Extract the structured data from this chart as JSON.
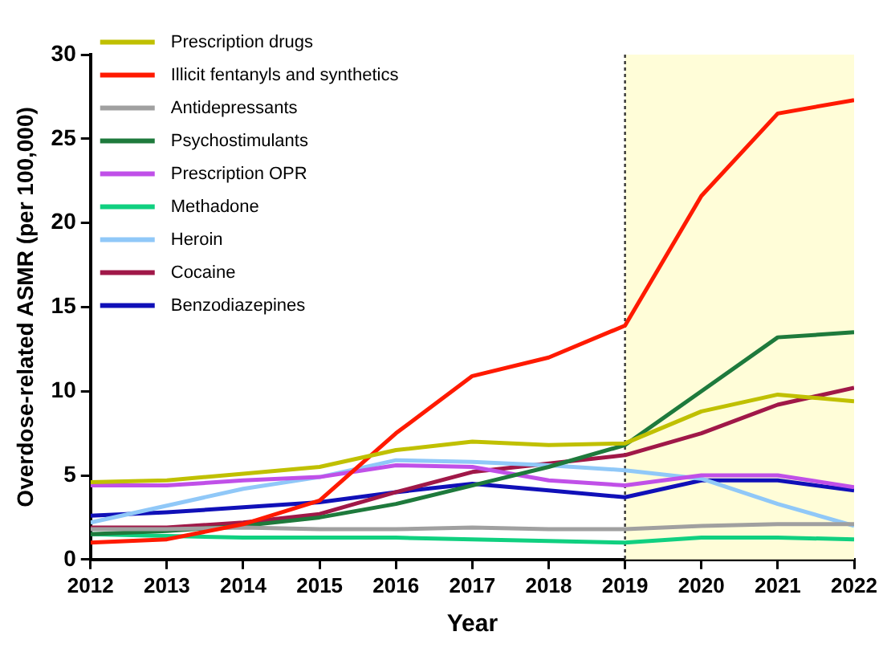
{
  "chart_data": {
    "type": "line",
    "xlabel": "Year",
    "ylabel": "Overdose-related ASMR (per 100,000)",
    "x": [
      2012,
      2013,
      2014,
      2015,
      2016,
      2017,
      2018,
      2019,
      2020,
      2021,
      2022
    ],
    "xlim": [
      2012,
      2022
    ],
    "xticks": [
      2012,
      2013,
      2014,
      2015,
      2016,
      2017,
      2018,
      2019,
      2020,
      2021,
      2022
    ],
    "ylim": [
      0,
      30
    ],
    "yticks": [
      0,
      5,
      10,
      15,
      20,
      25,
      30
    ],
    "grid": false,
    "legend": "top left",
    "marker": "none",
    "line_style": "solid",
    "ref_lines": [
      {
        "axis": "x",
        "value": 2019,
        "line_style": "dotted",
        "color": "#333333"
      }
    ],
    "bands": [
      {
        "axis": "x",
        "from": 2019,
        "to": 2022,
        "color": "#fffdd8"
      }
    ],
    "series": [
      {
        "name": "Prescription drugs",
        "color": "#c0c000",
        "values": [
          4.6,
          4.7,
          5.1,
          5.5,
          6.5,
          7.0,
          6.8,
          6.9,
          8.8,
          9.8,
          9.4
        ]
      },
      {
        "name": "Illicit fentanyls and synthetics",
        "color": "#ff1a00",
        "values": [
          1.0,
          1.2,
          2.1,
          3.5,
          7.5,
          10.9,
          12.0,
          13.9,
          21.6,
          26.5,
          27.3
        ]
      },
      {
        "name": "Antidepressants",
        "color": "#a0a0a0",
        "values": [
          1.8,
          1.8,
          1.9,
          1.8,
          1.8,
          1.9,
          1.8,
          1.8,
          2.0,
          2.1,
          2.1
        ]
      },
      {
        "name": "Psychostimulants",
        "color": "#1e7a3c",
        "values": [
          1.5,
          1.7,
          2.0,
          2.5,
          3.3,
          4.4,
          5.5,
          6.8,
          10.0,
          13.2,
          13.5
        ]
      },
      {
        "name": "Prescription OPR",
        "color": "#c050e8",
        "values": [
          4.4,
          4.4,
          4.7,
          4.9,
          5.6,
          5.5,
          4.7,
          4.4,
          5.0,
          5.0,
          4.3
        ]
      },
      {
        "name": "Methadone",
        "color": "#10d080",
        "values": [
          1.5,
          1.4,
          1.3,
          1.3,
          1.3,
          1.2,
          1.1,
          1.0,
          1.3,
          1.3,
          1.2
        ]
      },
      {
        "name": "Heroin",
        "color": "#90c8f8",
        "values": [
          2.2,
          3.2,
          4.2,
          4.9,
          5.9,
          5.8,
          5.6,
          5.3,
          4.8,
          3.3,
          2.0
        ]
      },
      {
        "name": "Cocaine",
        "color": "#a01848",
        "values": [
          1.9,
          1.9,
          2.2,
          2.7,
          4.0,
          5.2,
          5.7,
          6.2,
          7.5,
          9.2,
          10.2
        ]
      },
      {
        "name": "Benzodiazepines",
        "color": "#1010b8",
        "values": [
          2.6,
          2.8,
          3.1,
          3.4,
          4.0,
          4.5,
          4.1,
          3.7,
          4.7,
          4.7,
          4.1
        ]
      }
    ]
  }
}
